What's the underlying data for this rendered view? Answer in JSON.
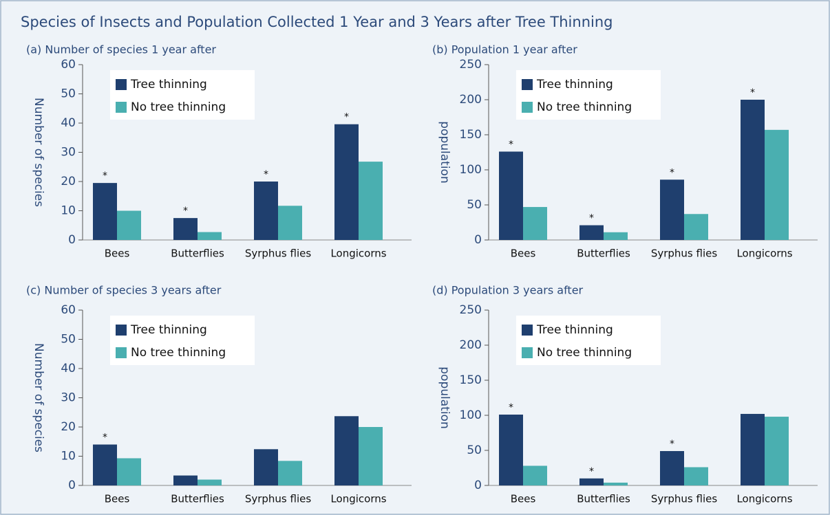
{
  "title": "Species of Insects and Population Collected 1 Year and 3 Years after Tree Thinning",
  "chart_data": [
    {
      "type": "bar",
      "title": "(a)  Number of species 1 year after",
      "y_label": "Number of species",
      "categories": [
        "Bees",
        "Butterflies",
        "Syrphus flies",
        "Longicorns"
      ],
      "series": [
        {
          "name": "Tree thinning",
          "color": "#1f3f6e",
          "values": [
            19.5,
            7.5,
            20,
            39.6
          ]
        },
        {
          "name": "No tree thinning",
          "color": "#4aafb0",
          "values": [
            10,
            2.7,
            11.7,
            26.8
          ]
        }
      ],
      "significance": [
        "*",
        "*",
        "*",
        "*"
      ],
      "ylim": [
        0,
        60
      ],
      "yticks": [
        0,
        10,
        20,
        30,
        40,
        50,
        60
      ]
    },
    {
      "type": "bar",
      "title": "(b)  Population 1 year after",
      "y_label": "population",
      "categories": [
        "Bees",
        "Butterflies",
        "Syrphus flies",
        "Longicorns"
      ],
      "series": [
        {
          "name": "Tree thinning",
          "color": "#1f3f6e",
          "values": [
            126,
            21,
            86,
            200
          ]
        },
        {
          "name": "No tree thinning",
          "color": "#4aafb0",
          "values": [
            47,
            11,
            37,
            157
          ]
        }
      ],
      "significance": [
        "*",
        "*",
        "*",
        "*"
      ],
      "ylim": [
        0,
        250
      ],
      "yticks": [
        0,
        50,
        100,
        150,
        200,
        250
      ]
    },
    {
      "type": "bar",
      "title": "(c)  Number of species 3 years after",
      "y_label": "Number of species",
      "categories": [
        "Bees",
        "Butterflies",
        "Syrphus flies",
        "Longicorns"
      ],
      "series": [
        {
          "name": "Tree thinning",
          "color": "#1f3f6e",
          "values": [
            14,
            3.4,
            12.4,
            23.7
          ]
        },
        {
          "name": "No tree thinning",
          "color": "#4aafb0",
          "values": [
            9.3,
            2,
            8.4,
            20
          ]
        }
      ],
      "significance": [
        "*",
        null,
        null,
        null
      ],
      "ylim": [
        0,
        60
      ],
      "yticks": [
        0,
        10,
        20,
        30,
        40,
        50,
        60
      ]
    },
    {
      "type": "bar",
      "title": "(d)  Population 3 years after",
      "y_label": "population",
      "categories": [
        "Bees",
        "Butterflies",
        "Syrphus flies",
        "Longicorns"
      ],
      "series": [
        {
          "name": "Tree thinning",
          "color": "#1f3f6e",
          "values": [
            101,
            10,
            49,
            102
          ]
        },
        {
          "name": "No tree thinning",
          "color": "#4aafb0",
          "values": [
            28,
            4,
            26,
            98
          ]
        }
      ],
      "significance": [
        "*",
        "*",
        "*",
        null
      ],
      "ylim": [
        0,
        250
      ],
      "yticks": [
        0,
        50,
        100,
        150,
        200,
        250
      ]
    }
  ]
}
